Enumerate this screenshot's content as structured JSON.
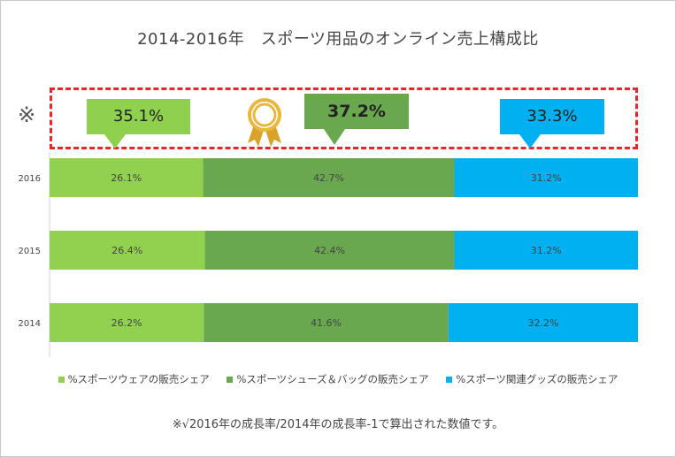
{
  "chart_data": {
    "type": "bar",
    "orientation": "horizontal",
    "stacked": true,
    "title": "2014-2016年　スポーツ用品のオンライン売上構成比",
    "categories": [
      "2016",
      "2015",
      "2014"
    ],
    "series": [
      {
        "name": "%スポーツウェアの販売シェア",
        "color": "#92d050",
        "values": [
          26.1,
          26.4,
          26.2
        ],
        "labels": [
          "26.1%",
          "26.4%",
          "26.2%"
        ]
      },
      {
        "name": "%スポーツシューズ＆バッグの販売シェア",
        "color": "#6aa84f",
        "values": [
          42.7,
          42.4,
          41.6
        ],
        "labels": [
          "42.7%",
          "42.4%",
          "41.6%"
        ]
      },
      {
        "name": "%スポーツ関連グッズの販売シェア",
        "color": "#00b0f0",
        "values": [
          31.2,
          31.2,
          32.2
        ],
        "labels": [
          "31.2%",
          "31.2%",
          "32.2%"
        ]
      }
    ],
    "xlim": [
      0,
      100
    ],
    "legend_position": "bottom",
    "grid": false
  },
  "annotations": {
    "note_mark": "※",
    "callouts": [
      {
        "label": "35.1%",
        "color": "#8fd14f"
      },
      {
        "label": "37.2%",
        "color": "#6aa84f",
        "emphasized": true
      },
      {
        "label": "33.3%",
        "color": "#00b0f0"
      }
    ],
    "medal_icon": "award-ribbon-icon"
  },
  "footnote": "※√2016年の成長率/2014年の成長率-1で算出された数値です。"
}
